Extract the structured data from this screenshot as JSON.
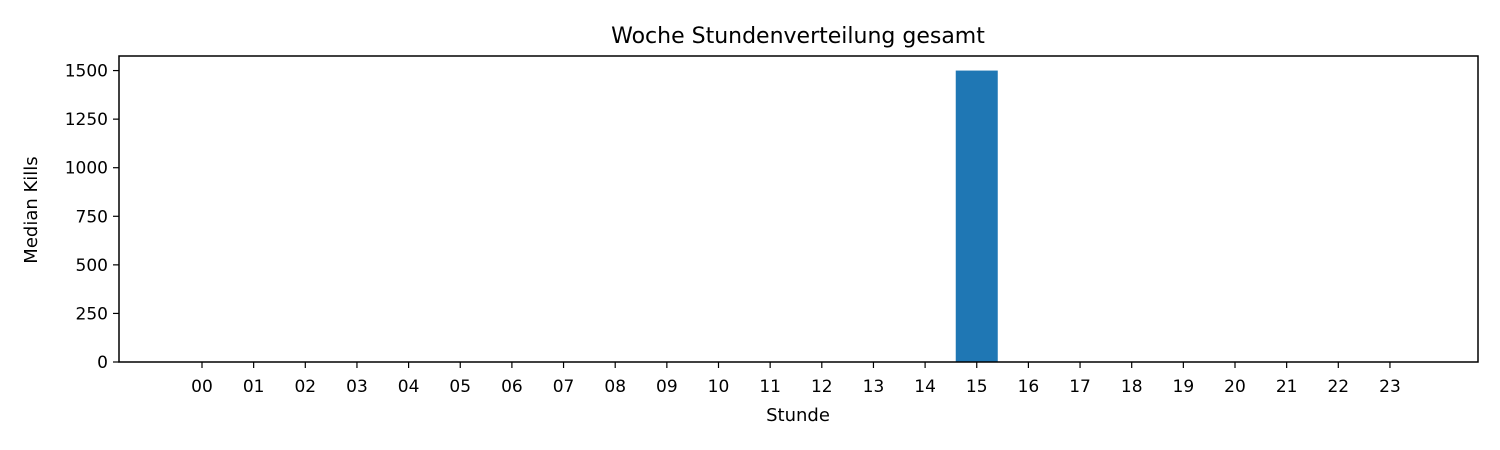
{
  "chart_data": {
    "type": "bar",
    "title": "Woche Stundenverteilung gesamt",
    "xlabel": "Stunde",
    "ylabel": "Median Kills",
    "categories": [
      "00",
      "01",
      "02",
      "03",
      "04",
      "05",
      "06",
      "07",
      "08",
      "09",
      "10",
      "11",
      "12",
      "13",
      "14",
      "15",
      "16",
      "17",
      "18",
      "19",
      "20",
      "21",
      "22",
      "23"
    ],
    "values": [
      0,
      0,
      0,
      0,
      0,
      0,
      0,
      0,
      0,
      0,
      0,
      0,
      0,
      0,
      0,
      1500,
      0,
      0,
      0,
      0,
      0,
      0,
      0,
      0
    ],
    "yticks": [
      0,
      250,
      500,
      750,
      1000,
      1250,
      1500
    ],
    "ylim": [
      0,
      1575
    ],
    "grid": false,
    "bar_color": "#1f77b4"
  }
}
